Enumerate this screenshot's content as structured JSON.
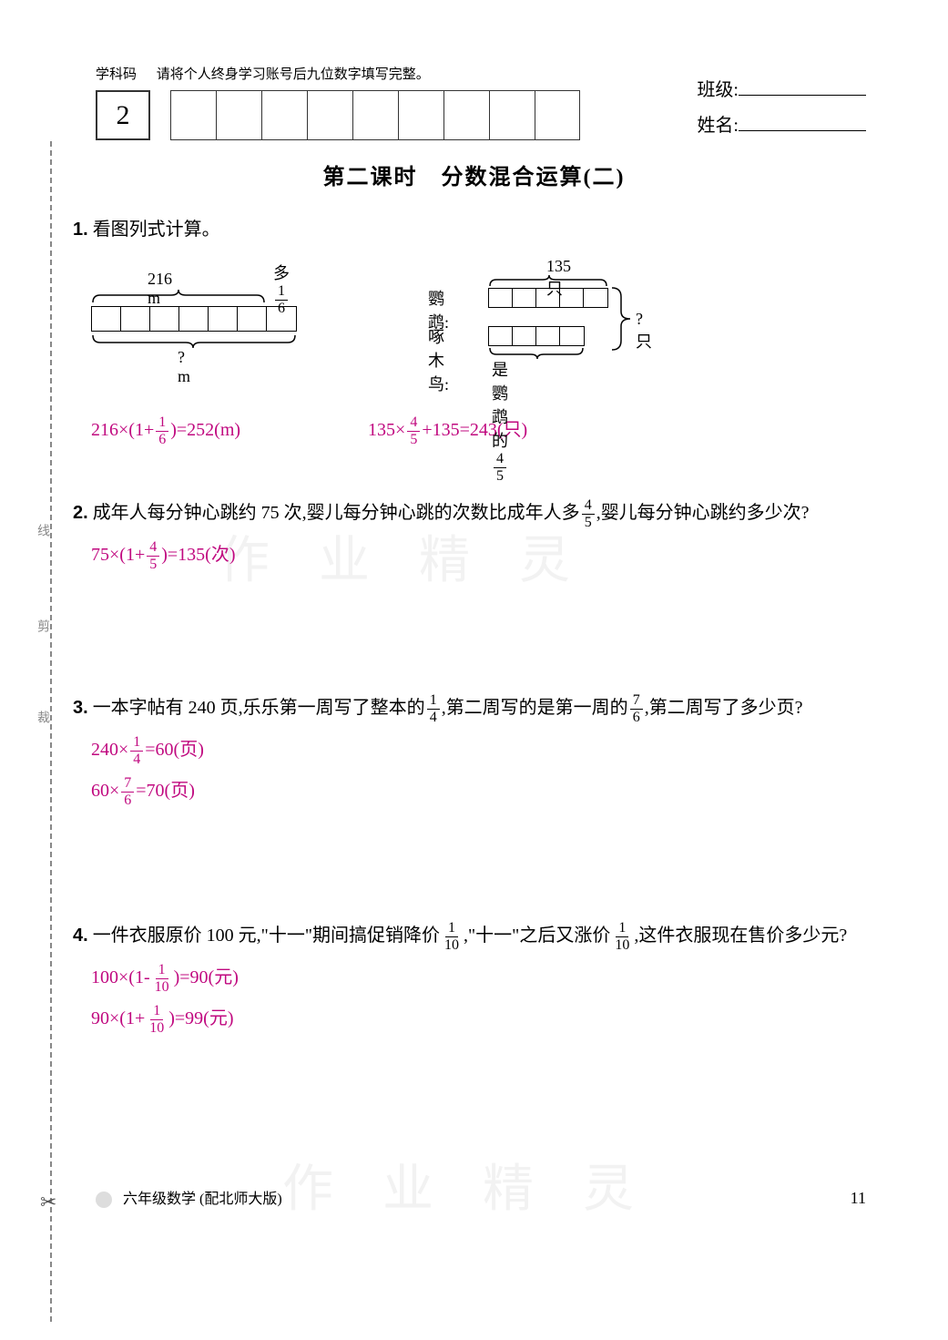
{
  "header": {
    "subject_code_label": "学科码",
    "instruction": "请将个人终身学习账号后九位数字填写完整。",
    "first_box": "2",
    "box_count": 9,
    "class_label": "班级:",
    "name_label": "姓名:"
  },
  "cut_line": {
    "label1": "线",
    "label2": "剪",
    "label3": "裁",
    "scissors": "✂"
  },
  "title": "第二课时　分数混合运算(二)",
  "problems": {
    "p1": {
      "num": "1.",
      "text": "看图列式计算。",
      "diagram_left": {
        "length_label": "216 m",
        "extra_label_prefix": "多",
        "extra_frac": {
          "num": "1",
          "den": "6"
        },
        "bottom_label": "? m",
        "main_segments": 6,
        "extra_segments": 1,
        "segment_width": 32
      },
      "diagram_right": {
        "bird1_label": "鹦鹉:",
        "bird1_count": "135只",
        "bird2_label": "啄木鸟:",
        "bird2_desc_prefix": "是鹦鹉的",
        "bird2_frac": {
          "num": "4",
          "den": "5"
        },
        "right_label": "?只",
        "bird1_segments": 5,
        "bird2_segments": 4,
        "segment_width": 26
      },
      "answer_left": {
        "prefix": "216×(1+",
        "frac": {
          "num": "1",
          "den": "6"
        },
        "suffix": ")=252(m)"
      },
      "answer_right": {
        "prefix": "135×",
        "frac": {
          "num": "4",
          "den": "5"
        },
        "suffix": "+135=243(只)"
      }
    },
    "p2": {
      "num": "2.",
      "text_part1": "成年人每分钟心跳约 75 次,婴儿每分钟心跳的次数比成年人多",
      "frac1": {
        "num": "4",
        "den": "5"
      },
      "text_part2": ",婴儿每分钟心跳约多少次?",
      "answer": {
        "prefix": "75×(1+",
        "frac": {
          "num": "4",
          "den": "5"
        },
        "suffix": ")=135(次)"
      }
    },
    "p3": {
      "num": "3.",
      "text_part1": "一本字帖有 240 页,乐乐第一周写了整本的",
      "frac1": {
        "num": "1",
        "den": "4"
      },
      "text_part2": ",第二周写的是第一周的",
      "frac2": {
        "num": "7",
        "den": "6"
      },
      "text_part3": ",第二周写了多少页?",
      "answer1": {
        "prefix": "240×",
        "frac": {
          "num": "1",
          "den": "4"
        },
        "suffix": "=60(页)"
      },
      "answer2": {
        "prefix": "60×",
        "frac": {
          "num": "7",
          "den": "6"
        },
        "suffix": "=70(页)"
      }
    },
    "p4": {
      "num": "4.",
      "text_part1": "一件衣服原价 100 元,\"十一\"期间搞促销降价",
      "frac1": {
        "num": "1",
        "den": "10"
      },
      "text_part2": ",\"十一\"之后又涨价",
      "frac2": {
        "num": "1",
        "den": "10"
      },
      "text_part3": ",这件衣服现在售价多少元?",
      "answer1": {
        "prefix": "100×(1-",
        "frac": {
          "num": "1",
          "den": "10"
        },
        "suffix": ")=90(元)"
      },
      "answer2": {
        "prefix": "90×(1+",
        "frac": {
          "num": "1",
          "den": "10"
        },
        "suffix": ")=99(元)"
      }
    }
  },
  "footer": {
    "text": "六年级数学 (配北师大版)",
    "page_num": "11"
  },
  "watermarks": {
    "w1": "作 业 精 灵",
    "w2": "作 业 精 灵"
  },
  "colors": {
    "answer": "#c0087f",
    "text": "#000000",
    "background": "#ffffff"
  }
}
